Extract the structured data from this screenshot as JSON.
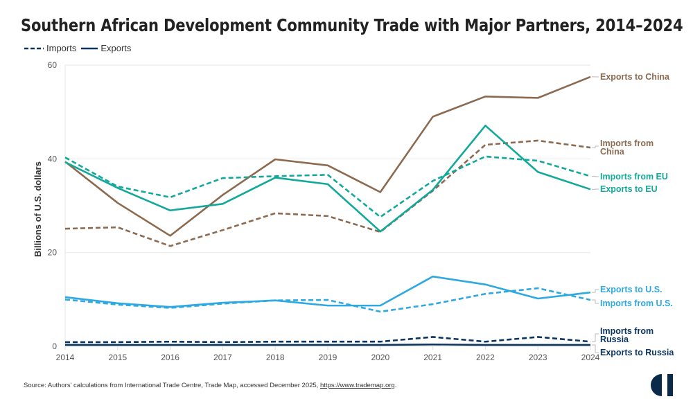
{
  "chart_data": {
    "type": "line",
    "title": "Southern African Development Community Trade with Major Partners, 2014–2024",
    "xlabel": "",
    "ylabel": "Billions of U.S. dollars",
    "ylim": [
      0,
      60
    ],
    "yticks": [
      0,
      20,
      40,
      60
    ],
    "x": [
      2014,
      2015,
      2016,
      2017,
      2018,
      2019,
      2020,
      2021,
      2022,
      2023,
      2024
    ],
    "xticks": [
      "2014",
      "2015",
      "2016",
      "2017",
      "2018",
      "2019",
      "2020",
      "2021",
      "2022",
      "2023",
      "2024"
    ],
    "grid": "horizontal",
    "legend": {
      "placement": "top-left",
      "entries": [
        {
          "label": "Imports",
          "style": "dashed"
        },
        {
          "label": "Exports",
          "style": "solid"
        }
      ]
    },
    "series": [
      {
        "name": "Exports to China",
        "label_lines": [
          "Exports to China"
        ],
        "color": "#8B6A50",
        "style": "solid",
        "values": [
          39.4,
          30.6,
          23.6,
          32.3,
          39.9,
          38.6,
          32.9,
          49.0,
          53.3,
          53.0,
          57.5
        ]
      },
      {
        "name": "Imports from China",
        "label_lines": [
          "Imports from",
          "China"
        ],
        "color": "#8B6A50",
        "style": "dashed",
        "values": [
          25.1,
          25.4,
          21.4,
          24.8,
          28.4,
          27.8,
          24.4,
          33.2,
          43.0,
          43.9,
          42.4
        ]
      },
      {
        "name": "Imports from EU",
        "label_lines": [
          "Imports from EU"
        ],
        "color": "#12A89A",
        "style": "dashed",
        "values": [
          40.3,
          34.1,
          31.8,
          35.9,
          36.3,
          36.6,
          27.6,
          35.3,
          40.5,
          39.6,
          36.3
        ]
      },
      {
        "name": "Exports to EU",
        "label_lines": [
          "Exports to EU"
        ],
        "color": "#12A89A",
        "style": "solid",
        "values": [
          39.3,
          33.8,
          29.0,
          30.4,
          36.0,
          34.6,
          24.5,
          33.4,
          47.1,
          37.2,
          33.5
        ]
      },
      {
        "name": "Exports to U.S.",
        "label_lines": [
          "Exports to U.S."
        ],
        "color": "#2EA8E0",
        "style": "solid",
        "values": [
          10.5,
          9.2,
          8.4,
          9.3,
          9.8,
          8.7,
          8.7,
          14.9,
          13.2,
          10.2,
          11.5
        ]
      },
      {
        "name": "Imports from U.S.",
        "label_lines": [
          "Imports from U.S."
        ],
        "color": "#2EA8E0",
        "style": "dashed",
        "values": [
          10.0,
          8.9,
          8.2,
          9.1,
          9.8,
          9.9,
          7.4,
          9.0,
          11.2,
          12.4,
          9.9
        ]
      },
      {
        "name": "Imports from Russia",
        "label_lines": [
          "Imports from",
          "Russia"
        ],
        "color": "#0B3560",
        "style": "dashed",
        "values": [
          0.9,
          0.9,
          1.0,
          0.9,
          1.0,
          1.0,
          1.0,
          2.0,
          1.0,
          2.0,
          1.0
        ]
      },
      {
        "name": "Exports to Russia",
        "label_lines": [
          "Exports to Russia"
        ],
        "color": "#0B3560",
        "style": "solid",
        "values": [
          0.3,
          0.3,
          0.3,
          0.3,
          0.3,
          0.3,
          0.3,
          0.4,
          0.3,
          0.3,
          0.3
        ]
      }
    ]
  },
  "header": {
    "title": "Southern African Development Community Trade with Major Partners, 2014–2024"
  },
  "legend": {
    "imports_label": "Imports",
    "exports_label": "Exports",
    "color": "#0B3560"
  },
  "footer": {
    "source_prefix": "Source: Authors' calculations from International Trade Centre, Trade Map, accessed December 2025, ",
    "source_link": "https://www.trademap.org",
    "source_suffix": ".",
    "logo": "cfr-logo-icon"
  }
}
